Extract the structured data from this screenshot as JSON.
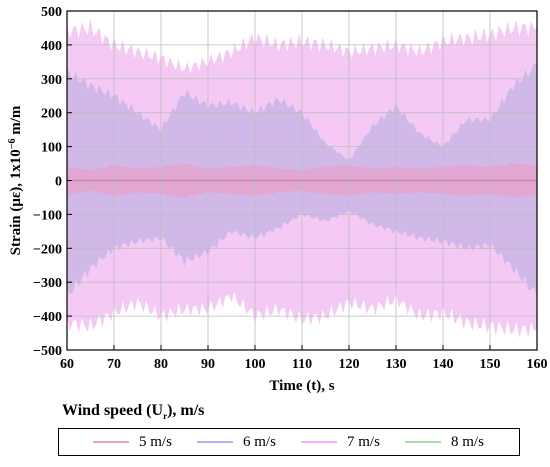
{
  "chart_data": {
    "type": "area",
    "title": "",
    "xlabel": "Time (t), s",
    "ylabel_parts": {
      "main": "Strain (με), 1x10",
      "exp": "−6",
      "unit": " m/m"
    },
    "xlim": [
      60,
      160
    ],
    "ylim": [
      -500,
      500
    ],
    "x_ticks": [
      60,
      70,
      80,
      90,
      100,
      110,
      120,
      130,
      140,
      150,
      160
    ],
    "y_ticks": [
      -500,
      -400,
      -300,
      -200,
      -100,
      0,
      100,
      200,
      300,
      400,
      500
    ],
    "grid": true,
    "legend_title": {
      "main": "Wind speed (U",
      "sub": "r",
      "rest": "), m/s"
    },
    "legend_placement": "bottom",
    "x": [
      60,
      65,
      70,
      75,
      80,
      85,
      90,
      95,
      100,
      105,
      110,
      115,
      120,
      125,
      130,
      135,
      140,
      145,
      150,
      155,
      160
    ],
    "series": [
      {
        "name": "5 m/s",
        "color": "#f2a0b4",
        "fill": "#e8a0c8",
        "upper": [
          40,
          30,
          45,
          35,
          40,
          50,
          35,
          40,
          45,
          35,
          30,
          40,
          45,
          35,
          40,
          35,
          40,
          45,
          40,
          50,
          45
        ],
        "lower": [
          -40,
          -30,
          -45,
          -35,
          -40,
          -50,
          -35,
          -40,
          -45,
          -35,
          -30,
          -40,
          -45,
          -35,
          -40,
          -35,
          -40,
          -45,
          -40,
          -50,
          -45
        ]
      },
      {
        "name": "6 m/s",
        "color": "#b8b0e8",
        "fill": "#c0b0e4",
        "upper": [
          320,
          280,
          250,
          200,
          150,
          260,
          220,
          230,
          200,
          240,
          200,
          110,
          60,
          160,
          220,
          140,
          100,
          180,
          180,
          280,
          340
        ],
        "lower": [
          -340,
          -260,
          -200,
          -180,
          -170,
          -240,
          -210,
          -150,
          -170,
          -140,
          -100,
          -120,
          -90,
          -130,
          -150,
          -170,
          -180,
          -200,
          -190,
          -260,
          -340
        ]
      },
      {
        "name": "7 m/s",
        "color": "#f4b0f4",
        "fill": "#f0b8f0",
        "upper": [
          440,
          450,
          400,
          380,
          360,
          330,
          350,
          380,
          420,
          400,
          410,
          400,
          380,
          390,
          400,
          380,
          410,
          420,
          430,
          450,
          450
        ],
        "lower": [
          -420,
          -430,
          -390,
          -360,
          -400,
          -380,
          -380,
          -340,
          -400,
          -380,
          -410,
          -400,
          -360,
          -380,
          -350,
          -400,
          -390,
          -420,
          -430,
          -440,
          -440
        ]
      },
      {
        "name": "8 m/s",
        "color": "#a8dca8",
        "fill": "#a8dca8",
        "upper": [],
        "lower": []
      }
    ]
  }
}
